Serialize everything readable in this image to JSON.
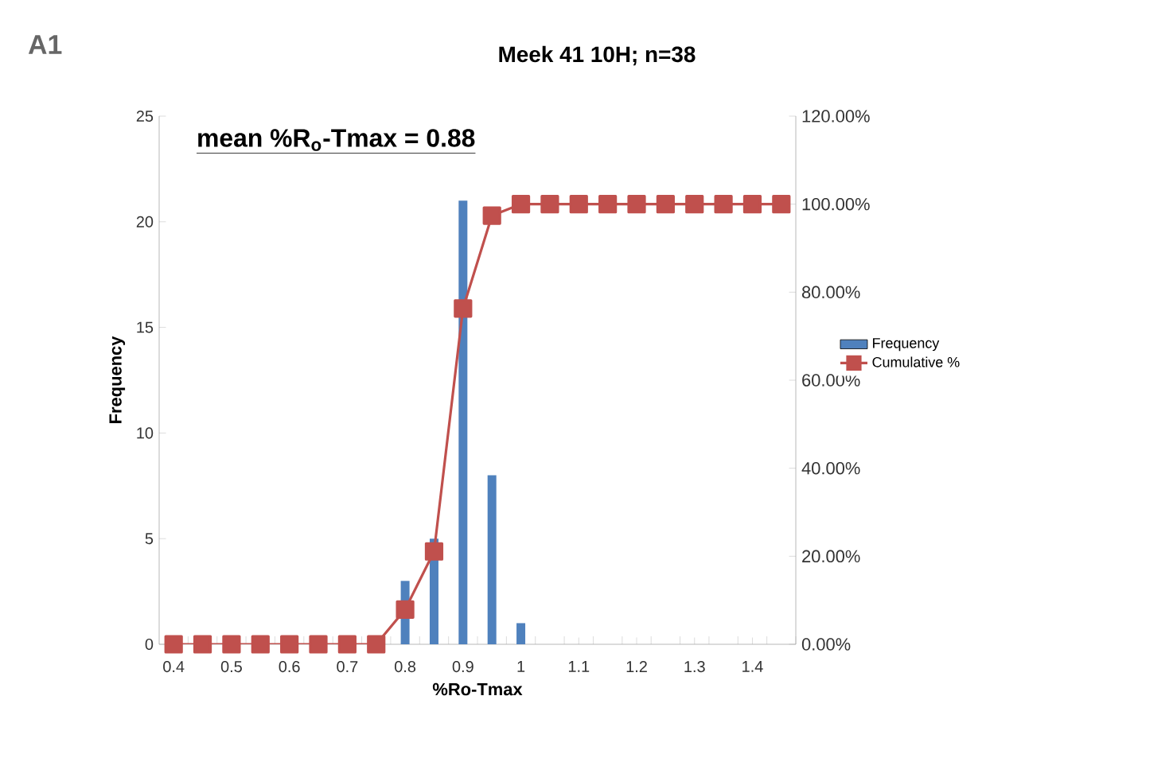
{
  "chart_data": {
    "type": "bar",
    "title": "Meek 41 10H; n=38",
    "xlabel": "%Ro-Tmax",
    "ylabel": "Frequency",
    "categories": [
      "0.4",
      null,
      "0.5",
      null,
      "0.6",
      null,
      "0.7",
      null,
      "0.8",
      null,
      "0.9",
      null,
      "1",
      null,
      "1.1",
      null,
      "1.2",
      null,
      "1.3",
      null,
      "1.4",
      null
    ],
    "series": [
      {
        "name": "Frequency",
        "color": "#4f81bd",
        "values": [
          0,
          0,
          0,
          0,
          0,
          0,
          0,
          0,
          3,
          5,
          21,
          8,
          1,
          0,
          0,
          0,
          0,
          0,
          0,
          0,
          0,
          0
        ]
      },
      {
        "name": "Cumulative %",
        "type": "line",
        "axis": "y2",
        "marker": "square",
        "color": "#c0504d",
        "values": [
          0,
          0,
          0,
          0,
          0,
          0,
          0,
          0,
          7.9,
          21.1,
          76.3,
          97.4,
          100,
          100,
          100,
          100,
          100,
          100,
          100,
          100,
          100,
          100
        ]
      }
    ],
    "ylim": [
      0,
      25
    ],
    "yticks": [
      0,
      5,
      10,
      15,
      20,
      25
    ],
    "y2lim": [
      0,
      120
    ],
    "y2ticks": [
      {
        "value": 0,
        "label": "0.00%"
      },
      {
        "value": 20,
        "label": "20.00%"
      },
      {
        "value": 40,
        "label": "40.00%"
      },
      {
        "value": 60,
        "label": "60.00%"
      },
      {
        "value": 80,
        "label": "80.00%"
      },
      {
        "value": 100,
        "label": "100.00%"
      },
      {
        "value": 120,
        "label": "120.00%"
      }
    ],
    "legend": "right",
    "annotations": [
      "A1",
      "mean %R$_{o}$-Tmax = 0.88"
    ]
  }
}
